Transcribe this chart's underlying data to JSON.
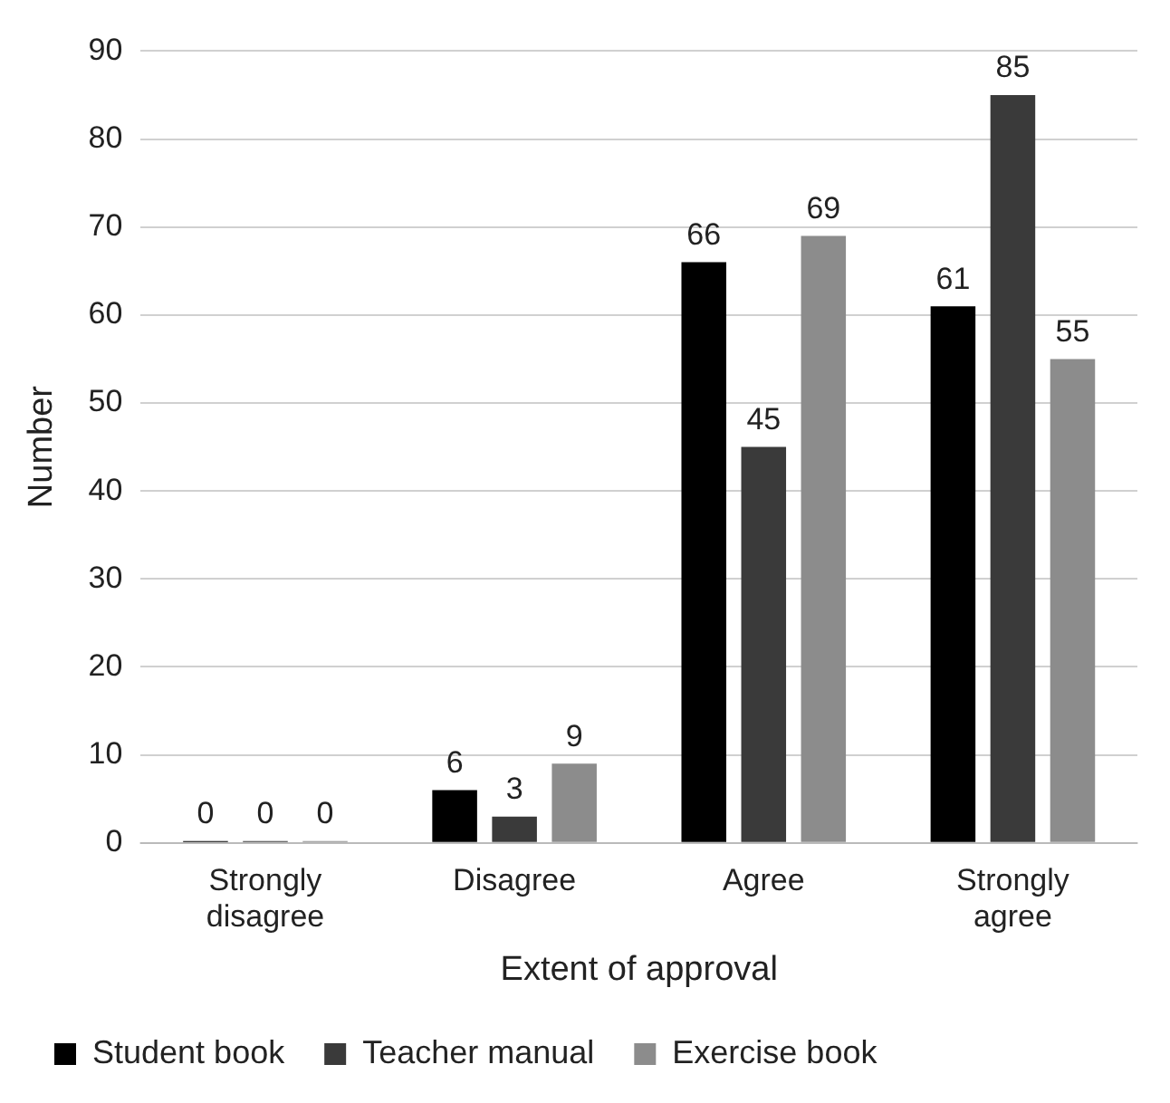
{
  "chart_data": {
    "type": "bar",
    "xlabel": "Extent of approval",
    "ylabel": "Number",
    "categories": [
      "Strongly disagree",
      "Disagree",
      "Agree",
      "Strongly agree"
    ],
    "series": [
      {
        "name": "Student book",
        "color": "#000000",
        "values": [
          0,
          6,
          66,
          61
        ]
      },
      {
        "name": "Teacher manual",
        "color": "#3a3a3a",
        "values": [
          0,
          3,
          45,
          85
        ]
      },
      {
        "name": "Exercise book",
        "color": "#8c8c8c",
        "values": [
          0,
          9,
          69,
          55
        ]
      }
    ],
    "ylim": [
      0,
      90
    ],
    "yticks": [
      0,
      10,
      20,
      30,
      40,
      50,
      60,
      70,
      80,
      90
    ],
    "grid": "y",
    "legend": "bottom",
    "data_labels": true
  }
}
